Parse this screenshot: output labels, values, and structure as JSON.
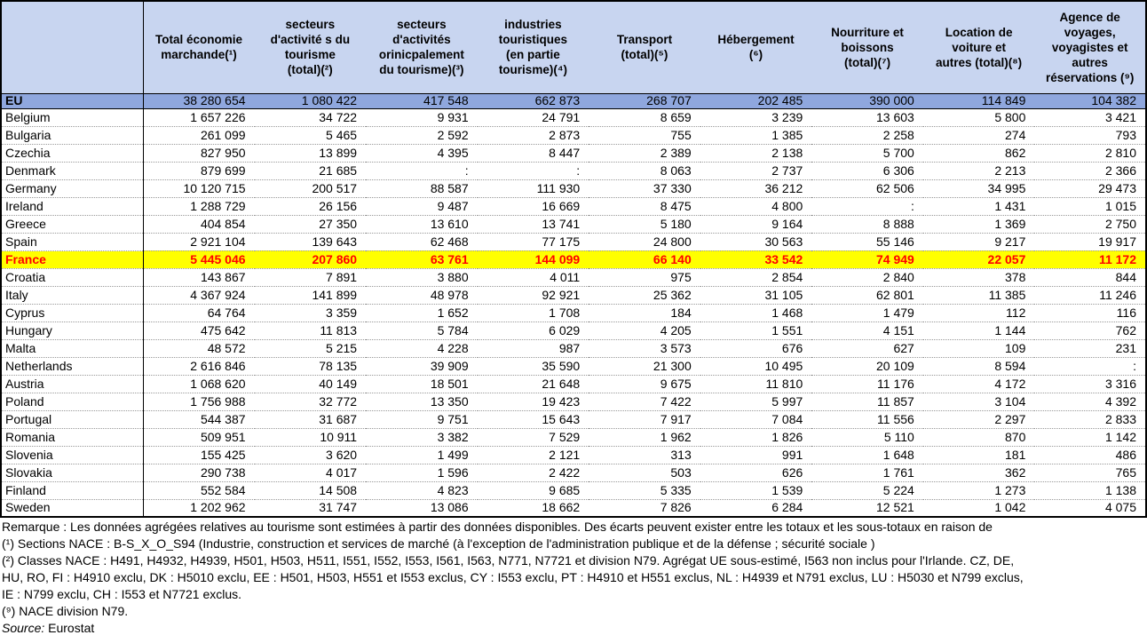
{
  "colors": {
    "header_bg": "#c8d5f0",
    "eu_row_bg": "#8fa7de",
    "highlight_bg": "#ffff00",
    "highlight_text": "#ff0000",
    "border": "#000000",
    "row_separator_dotted": "#999999"
  },
  "table": {
    "columns": [
      {
        "label": ""
      },
      {
        "label": "Total économie\nmarchande(¹)"
      },
      {
        "label": "secteurs\nd'activité s du\ntourisme\n(total)(²)"
      },
      {
        "label": "secteurs\nd'activités\norinicpalement\ndu tourisme)(³)"
      },
      {
        "label": "industries\ntouristiques\n(en partie\ntourisme)(⁴)"
      },
      {
        "label": "Transport\n(total)(⁵)"
      },
      {
        "label": "Hébergement\n(⁶)"
      },
      {
        "label": "Nourriture et\nboissons\n(total)(⁷)"
      },
      {
        "label": "Location de\nvoiture et\nautres (total)(⁸)"
      },
      {
        "label": "Agence de\nvoyages,\nvoyagistes et\nautres\nréservations (⁹)"
      }
    ],
    "eu_row": {
      "label": "EU",
      "values": [
        "38 280 654",
        "1 080 422",
        "417 548",
        "662 873",
        "268 707",
        "202 485",
        "390 000",
        "114 849",
        "104 382"
      ]
    },
    "rows": [
      {
        "country": "Belgium",
        "highlight": false,
        "values": [
          "1 657 226",
          "34 722",
          "9 931",
          "24 791",
          "8 659",
          "3 239",
          "13 603",
          "5 800",
          "3 421"
        ]
      },
      {
        "country": "Bulgaria",
        "highlight": false,
        "values": [
          "261 099",
          "5 465",
          "2 592",
          "2 873",
          "755",
          "1 385",
          "2 258",
          "274",
          "793"
        ]
      },
      {
        "country": "Czechia",
        "highlight": false,
        "values": [
          "827 950",
          "13 899",
          "4 395",
          "8 447",
          "2 389",
          "2 138",
          "5 700",
          "862",
          "2 810"
        ]
      },
      {
        "country": "Denmark",
        "highlight": false,
        "values": [
          "879 699",
          "21 685",
          ":",
          ":",
          "8 063",
          "2 737",
          "6 306",
          "2 213",
          "2 366"
        ]
      },
      {
        "country": "Germany",
        "highlight": false,
        "values": [
          "10 120 715",
          "200 517",
          "88 587",
          "111 930",
          "37 330",
          "36 212",
          "62 506",
          "34 995",
          "29 473"
        ]
      },
      {
        "country": "Ireland",
        "highlight": false,
        "values": [
          "1 288 729",
          "26 156",
          "9 487",
          "16 669",
          "8 475",
          "4 800",
          ":",
          "1 431",
          "1 015"
        ]
      },
      {
        "country": "Greece",
        "highlight": false,
        "values": [
          "404 854",
          "27 350",
          "13 610",
          "13 741",
          "5 180",
          "9 164",
          "8 888",
          "1 369",
          "2 750"
        ]
      },
      {
        "country": "Spain",
        "highlight": false,
        "values": [
          "2 921 104",
          "139 643",
          "62 468",
          "77 175",
          "24 800",
          "30 563",
          "55 146",
          "9 217",
          "19 917"
        ]
      },
      {
        "country": "France",
        "highlight": true,
        "values": [
          "5 445 046",
          "207 860",
          "63 761",
          "144 099",
          "66 140",
          "33 542",
          "74 949",
          "22 057",
          "11 172"
        ]
      },
      {
        "country": "Croatia",
        "highlight": false,
        "values": [
          "143 867",
          "7 891",
          "3 880",
          "4 011",
          "975",
          "2 854",
          "2 840",
          "378",
          "844"
        ]
      },
      {
        "country": "Italy",
        "highlight": false,
        "values": [
          "4 367 924",
          "141 899",
          "48 978",
          "92 921",
          "25 362",
          "31 105",
          "62 801",
          "11 385",
          "11 246"
        ]
      },
      {
        "country": "Cyprus",
        "highlight": false,
        "values": [
          "64 764",
          "3 359",
          "1 652",
          "1 708",
          "184",
          "1 468",
          "1 479",
          "112",
          "116"
        ]
      },
      {
        "country": "Hungary",
        "highlight": false,
        "values": [
          "475 642",
          "11 813",
          "5 784",
          "6 029",
          "4 205",
          "1 551",
          "4 151",
          "1 144",
          "762"
        ]
      },
      {
        "country": "Malta",
        "highlight": false,
        "values": [
          "48 572",
          "5 215",
          "4 228",
          "987",
          "3 573",
          "676",
          "627",
          "109",
          "231"
        ]
      },
      {
        "country": "Netherlands",
        "highlight": false,
        "values": [
          "2 616 846",
          "78 135",
          "39 909",
          "35 590",
          "21 300",
          "10 495",
          "20 109",
          "8 594",
          ":"
        ]
      },
      {
        "country": "Austria",
        "highlight": false,
        "values": [
          "1 068 620",
          "40 149",
          "18 501",
          "21 648",
          "9 675",
          "11 810",
          "11 176",
          "4 172",
          "3 316"
        ]
      },
      {
        "country": "Poland",
        "highlight": false,
        "values": [
          "1 756 988",
          "32 772",
          "13 350",
          "19 423",
          "7 422",
          "5 997",
          "11 857",
          "3 104",
          "4 392"
        ]
      },
      {
        "country": "Portugal",
        "highlight": false,
        "values": [
          "544 387",
          "31 687",
          "9 751",
          "15 643",
          "7 917",
          "7 084",
          "11 556",
          "2 297",
          "2 833"
        ]
      },
      {
        "country": "Romania",
        "highlight": false,
        "values": [
          "509 951",
          "10 911",
          "3 382",
          "7 529",
          "1 962",
          "1 826",
          "5 110",
          "870",
          "1 142"
        ]
      },
      {
        "country": "Slovenia",
        "highlight": false,
        "values": [
          "155 425",
          "3 620",
          "1 499",
          "2 121",
          "313",
          "991",
          "1 648",
          "181",
          "486"
        ]
      },
      {
        "country": "Slovakia",
        "highlight": false,
        "values": [
          "290 738",
          "4 017",
          "1 596",
          "2 422",
          "503",
          "626",
          "1 761",
          "362",
          "765"
        ]
      },
      {
        "country": "Finland",
        "highlight": false,
        "values": [
          "552 584",
          "14 508",
          "4 823",
          "9 685",
          "5 335",
          "1 539",
          "5 224",
          "1 273",
          "1 138"
        ]
      },
      {
        "country": "Sweden",
        "highlight": false,
        "values": [
          "1 202 962",
          "31 747",
          "13 086",
          "18 662",
          "7 826",
          "6 284",
          "12 521",
          "1 042",
          "4 075"
        ]
      }
    ]
  },
  "footer": {
    "lines": [
      "Remarque : Les données agrégées relatives au tourisme sont estimées à partir des données disponibles. Des écarts peuvent exister entre les totaux et les sous-totaux en raison de",
      "(¹) Sections NACE : B-S_X_O_S94 (Industrie, construction et services de marché (à l'exception de l'administration publique et de la défense ; sécurité sociale )",
      "(²) Classes NACE : H491, H4932, H4939, H501, H503, H511, I551, I552, I553, I561, I563, N771, N7721 et division N79. Agrégat UE sous-estimé, I563 non inclus pour l'Irlande. CZ, DE,",
      "HU, RO, FI : H4910 exclu, DK : H5010 exclu, EE : H501, H503, H551 et I553 exclus, CY : I553 exclu, PT : H4910 et H551 exclus, NL : H4939 et N791 exclus, LU : H5030 et N799 exclus,",
      "IE : N799 exclu, CH : I553 et N7721 exclus.",
      "(⁹) NACE division N79."
    ],
    "source_label": "Source:",
    "source_value": "Eurostat"
  }
}
